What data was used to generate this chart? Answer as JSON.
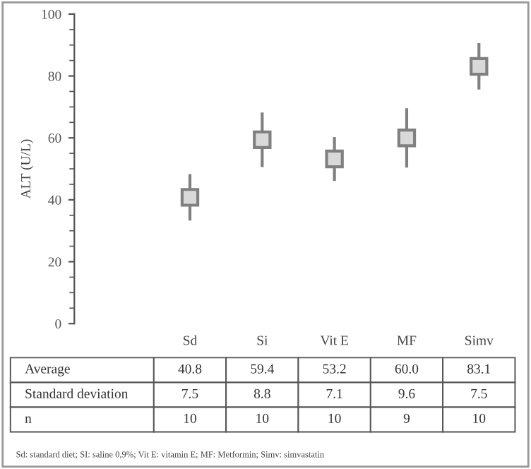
{
  "chart_data": {
    "type": "scatter",
    "ylabel": "ALT (U/L)",
    "categories": [
      "Sd",
      "Si",
      "Vit E",
      "MF",
      "Simv"
    ],
    "series": [
      {
        "color": "#d9d9d9",
        "values": [
          40.8,
          59.4,
          53.2,
          60.0,
          83.1
        ],
        "errors": [
          7.5,
          8.8,
          7.1,
          9.6,
          7.5
        ],
        "value_labels": [
          "40.8",
          "59.4",
          "53.2",
          "60.0",
          "83.1"
        ]
      }
    ],
    "marker": "square",
    "ylim": [
      0,
      100
    ],
    "yticks": [
      0,
      20,
      40,
      60,
      80,
      100
    ],
    "grid": false,
    "legend": false,
    "annotations": [
      "Average",
      "Standard deviation",
      "n",
      "7.5",
      "8.8",
      "7.1",
      "9.6",
      "7.5",
      "10",
      "10",
      "10",
      "9",
      "10",
      "Sd: standard diet; SI: saline 0,9%; Vit E: vitamin E; MF: Metformin; Simv: simvastatin"
    ]
  }
}
